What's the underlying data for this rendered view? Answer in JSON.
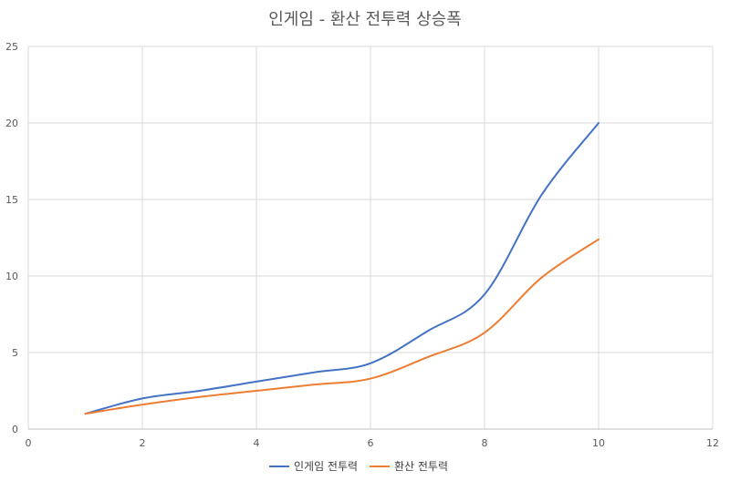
{
  "chart_data": {
    "type": "line",
    "title": "인게임 - 환산 전투력 상승폭",
    "xlabel": "",
    "ylabel": "",
    "xlim": [
      0,
      12
    ],
    "ylim": [
      0,
      25
    ],
    "x_ticks": [
      0,
      2,
      4,
      6,
      8,
      10,
      12
    ],
    "y_ticks": [
      0,
      5,
      10,
      15,
      20,
      25
    ],
    "grid": true,
    "smooth": true,
    "legend_position": "bottom",
    "series": [
      {
        "name": "인게임 전투력",
        "color": "#4472C4",
        "x": [
          1,
          2,
          3,
          4,
          5,
          6,
          7,
          8,
          9,
          10
        ],
        "y": [
          1.0,
          2.0,
          2.5,
          3.1,
          3.7,
          4.3,
          6.4,
          8.8,
          15.3,
          20.0
        ]
      },
      {
        "name": "환산 전투력",
        "color": "#ED7D31",
        "x": [
          1,
          2,
          3,
          4,
          5,
          6,
          7,
          8,
          9,
          10
        ],
        "y": [
          1.0,
          1.6,
          2.1,
          2.5,
          2.9,
          3.3,
          4.7,
          6.3,
          9.9,
          12.4
        ]
      }
    ]
  }
}
